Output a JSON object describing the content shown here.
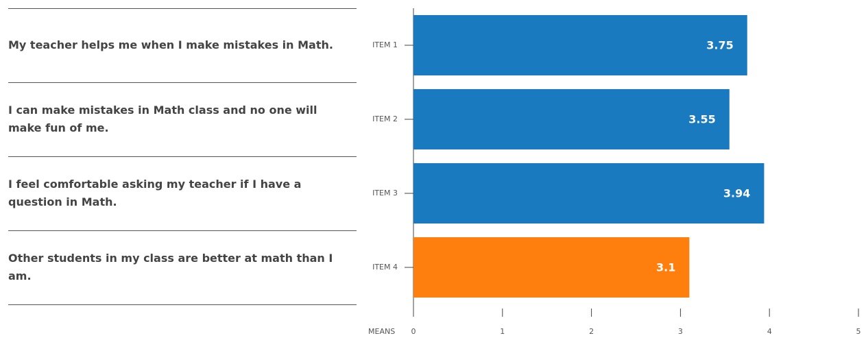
{
  "chart_data": {
    "type": "hbar",
    "statements": [
      "My teacher helps me when I make mistakes in Math.",
      "I can make mistakes in Math class and no one will make fun of me.",
      "I feel comfortable asking my teacher if I have a question in Math.",
      "Other students in my class are better at math than I am."
    ],
    "categories": [
      "ITEM 1",
      "ITEM 2",
      "ITEM 3",
      "ITEM 4"
    ],
    "values": [
      3.75,
      3.55,
      3.94,
      3.1
    ],
    "colors": [
      "#1a7abf",
      "#1a7abf",
      "#1a7abf",
      "#ff7f0e"
    ],
    "xlabel": "MEANS",
    "xlim": [
      0,
      5
    ],
    "xticks": [
      0,
      1,
      2,
      3,
      4,
      5
    ]
  }
}
